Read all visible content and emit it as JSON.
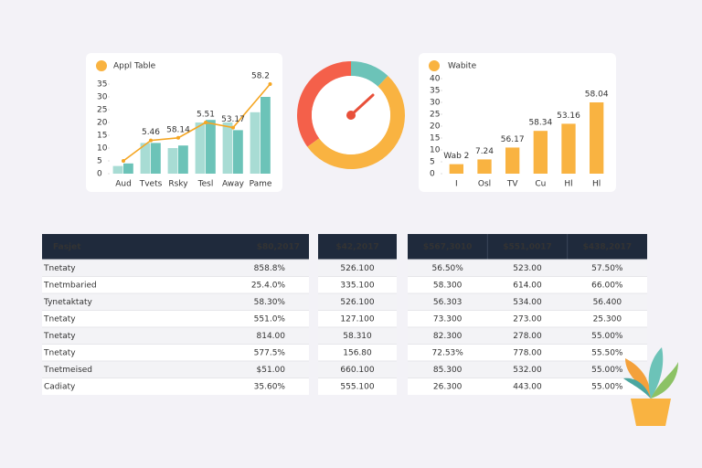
{
  "left_chart": {
    "type": "bar",
    "title": "Appl Table",
    "categories": [
      "Aud",
      "Tvets",
      "Rsky",
      "Tesl",
      "Away",
      "Pame"
    ],
    "series": [
      {
        "color": "#a8dcd4",
        "values": [
          3,
          12,
          10,
          20,
          20,
          24
        ]
      },
      {
        "color": "#6cc3b8",
        "values": [
          4,
          12,
          11,
          21,
          17,
          30
        ]
      }
    ],
    "line": {
      "color": "#f5a623",
      "values": [
        5,
        13,
        14,
        20,
        18,
        35
      ]
    },
    "annotations": [
      "5.46",
      "58.14",
      "5.51",
      "53.17",
      "58.2"
    ],
    "ylim": [
      0,
      35
    ],
    "yticks": [
      0,
      5,
      10,
      15,
      20,
      25,
      30,
      35
    ]
  },
  "gauge": {
    "type": "pie",
    "values": [
      35,
      12,
      53
    ],
    "colors": [
      "#f4604a",
      "#6cc3b8",
      "#f9b341"
    ]
  },
  "right_chart": {
    "type": "bar",
    "title": "Wabite",
    "categories": [
      "I",
      "Osl",
      "TV",
      "Cu",
      "Hl",
      "Hl"
    ],
    "color": "#f9b341",
    "values": [
      4,
      6,
      11,
      18,
      21,
      30
    ],
    "annotations": [
      "Wab 2",
      "7.24",
      "56.17",
      "58.34",
      "53.16",
      "58.04"
    ],
    "ylim": [
      0,
      40
    ],
    "yticks": [
      0,
      5,
      10,
      15,
      20,
      25,
      30,
      35,
      40
    ]
  },
  "tables": [
    {
      "header": [
        "Fasjet",
        "$80,2017"
      ],
      "rows": [
        [
          "Tnetaty",
          "858.8%"
        ],
        [
          "Tnetmbaried",
          "25.4.0%"
        ],
        [
          "Tynetaktaty",
          "58.30%"
        ],
        [
          "Tnetaty",
          "551.0%"
        ],
        [
          "Tnetaty",
          "814.00"
        ],
        [
          "Tnetaty",
          "577.5%"
        ],
        [
          "Tnetmeised",
          "$51.00"
        ],
        [
          "Cadiaty",
          "35.60%"
        ]
      ]
    },
    {
      "header": [
        "$42,2017"
      ],
      "rows": [
        [
          "526.100"
        ],
        [
          "335.100"
        ],
        [
          "526.100"
        ],
        [
          "127.100"
        ],
        [
          "58.310"
        ],
        [
          "156.80"
        ],
        [
          "660.100"
        ],
        [
          "555.100"
        ]
      ]
    },
    {
      "header": [
        "$567,3010",
        "$551,0017",
        "$438,2017"
      ],
      "rows": [
        [
          "56.50%",
          "523.00",
          "57.50%"
        ],
        [
          "58.300",
          "614.00",
          "66.00%"
        ],
        [
          "56.303",
          "534.00",
          "56.400"
        ],
        [
          "73.300",
          "273.00",
          "25.300"
        ],
        [
          "82.300",
          "278.00",
          "55.00%"
        ],
        [
          "72.53%",
          "778.00",
          "55.50%"
        ],
        [
          "85.300",
          "532.00",
          "55.00%"
        ],
        [
          "26.300",
          "443.00",
          "55.00%"
        ]
      ]
    }
  ]
}
